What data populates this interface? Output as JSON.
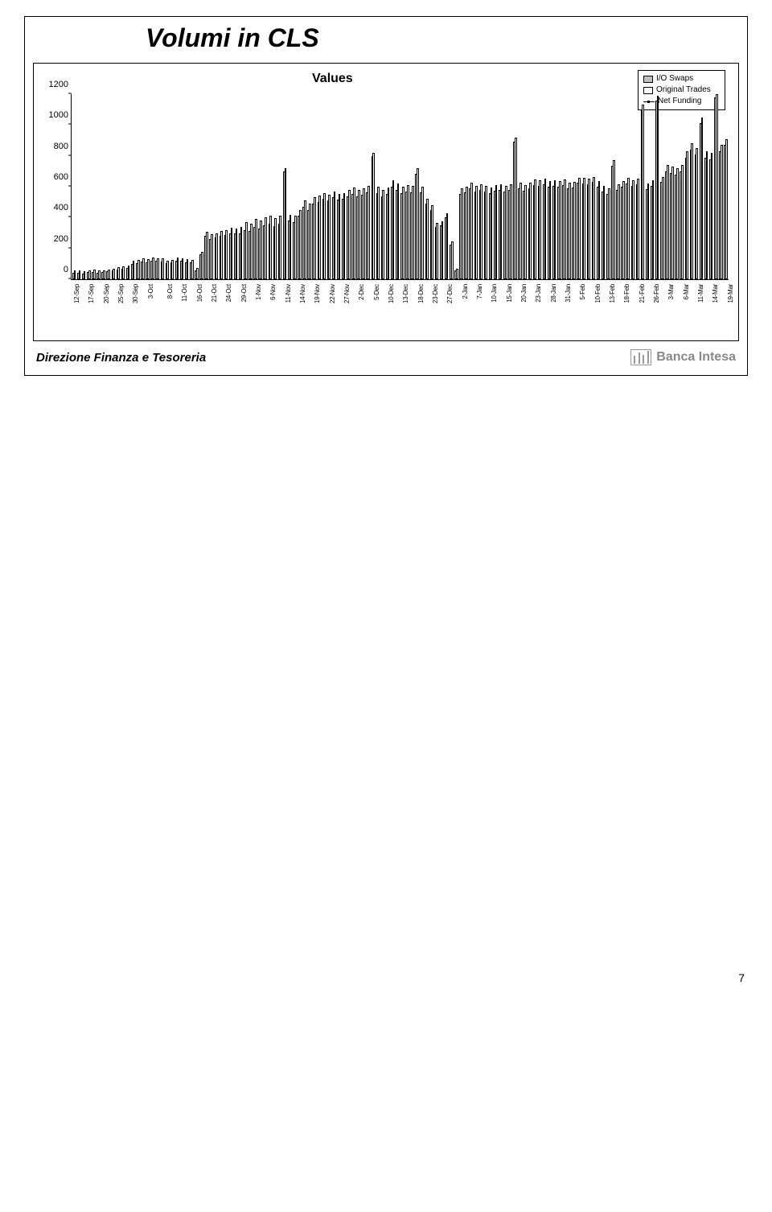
{
  "title": "Volumi in CLS",
  "chart": {
    "values_label": "Values",
    "legend": {
      "io_swaps_label": "I/O Swaps",
      "io_swaps_color": "#c0c0c0",
      "original_trades_label": "Original Trades",
      "original_trades_color": "#ffffff",
      "net_funding_label": "Net Funding"
    },
    "y_axis": {
      "min": 0,
      "max": 1200,
      "step": 200,
      "ticks": [
        0,
        200,
        400,
        600,
        800,
        1000,
        1200
      ]
    },
    "bar_outline": "#000000",
    "series": [
      {
        "date": "12-Sep",
        "io": 40,
        "ot": 55,
        "label": true
      },
      {
        "date": "",
        "io": 42,
        "ot": 58,
        "label": false
      },
      {
        "date": "",
        "io": 38,
        "ot": 52,
        "label": false
      },
      {
        "date": "17-Sep",
        "io": 45,
        "ot": 60,
        "label": true
      },
      {
        "date": "",
        "io": 48,
        "ot": 62,
        "label": false
      },
      {
        "date": "",
        "io": 44,
        "ot": 58,
        "label": false
      },
      {
        "date": "20-Sep",
        "io": 46,
        "ot": 60,
        "label": true
      },
      {
        "date": "",
        "io": 50,
        "ot": 65,
        "label": false
      },
      {
        "date": "",
        "io": 55,
        "ot": 70,
        "label": false
      },
      {
        "date": "25-Sep",
        "io": 65,
        "ot": 80,
        "label": true
      },
      {
        "date": "",
        "io": 68,
        "ot": 85,
        "label": false
      },
      {
        "date": "",
        "io": 72,
        "ot": 90,
        "label": false
      },
      {
        "date": "30-Sep",
        "io": 100,
        "ot": 120,
        "label": true
      },
      {
        "date": "",
        "io": 105,
        "ot": 125,
        "label": false
      },
      {
        "date": "",
        "io": 115,
        "ot": 135,
        "label": false
      },
      {
        "date": "3-Oct",
        "io": 110,
        "ot": 130,
        "label": true
      },
      {
        "date": "",
        "io": 120,
        "ot": 140,
        "label": false
      },
      {
        "date": "",
        "io": 118,
        "ot": 138,
        "label": false
      },
      {
        "date": "",
        "io": 115,
        "ot": 135,
        "label": false
      },
      {
        "date": "8-Oct",
        "io": 105,
        "ot": 122,
        "label": true
      },
      {
        "date": "",
        "io": 108,
        "ot": 126,
        "label": false
      },
      {
        "date": "",
        "io": 120,
        "ot": 140,
        "label": false
      },
      {
        "date": "11-Oct",
        "io": 118,
        "ot": 136,
        "label": true
      },
      {
        "date": "",
        "io": 112,
        "ot": 130,
        "label": false
      },
      {
        "date": "",
        "io": 108,
        "ot": 125,
        "label": false
      },
      {
        "date": "16-Oct",
        "io": 60,
        "ot": 75,
        "label": true
      },
      {
        "date": "",
        "io": 160,
        "ot": 180,
        "label": false
      },
      {
        "date": "",
        "io": 280,
        "ot": 310,
        "label": false
      },
      {
        "date": "21-Oct",
        "io": 260,
        "ot": 290,
        "label": true
      },
      {
        "date": "",
        "io": 270,
        "ot": 300,
        "label": false
      },
      {
        "date": "",
        "io": 280,
        "ot": 315,
        "label": false
      },
      {
        "date": "24-Oct",
        "io": 285,
        "ot": 320,
        "label": true
      },
      {
        "date": "",
        "io": 300,
        "ot": 335,
        "label": false
      },
      {
        "date": "",
        "io": 295,
        "ot": 330,
        "label": false
      },
      {
        "date": "29-Oct",
        "io": 300,
        "ot": 340,
        "label": true
      },
      {
        "date": "",
        "io": 320,
        "ot": 370,
        "label": false
      },
      {
        "date": "",
        "io": 315,
        "ot": 360,
        "label": false
      },
      {
        "date": "1-Nov",
        "io": 340,
        "ot": 390,
        "label": true
      },
      {
        "date": "",
        "io": 330,
        "ot": 380,
        "label": false
      },
      {
        "date": "",
        "io": 350,
        "ot": 400,
        "label": false
      },
      {
        "date": "6-Nov",
        "io": 360,
        "ot": 410,
        "label": true
      },
      {
        "date": "",
        "io": 345,
        "ot": 395,
        "label": false
      },
      {
        "date": "",
        "io": 360,
        "ot": 410,
        "label": false
      },
      {
        "date": "11-Nov",
        "io": 700,
        "ot": 720,
        "label": true
      },
      {
        "date": "",
        "io": 380,
        "ot": 420,
        "label": false
      },
      {
        "date": "",
        "io": 370,
        "ot": 410,
        "label": false
      },
      {
        "date": "14-Nov",
        "io": 410,
        "ot": 450,
        "label": true
      },
      {
        "date": "",
        "io": 470,
        "ot": 510,
        "label": false
      },
      {
        "date": "",
        "io": 450,
        "ot": 490,
        "label": false
      },
      {
        "date": "19-Nov",
        "io": 490,
        "ot": 530,
        "label": true
      },
      {
        "date": "",
        "io": 500,
        "ot": 545,
        "label": false
      },
      {
        "date": "",
        "io": 520,
        "ot": 560,
        "label": false
      },
      {
        "date": "22-Nov",
        "io": 510,
        "ot": 550,
        "label": true
      },
      {
        "date": "",
        "io": 530,
        "ot": 570,
        "label": false
      },
      {
        "date": "",
        "io": 515,
        "ot": 555,
        "label": false
      },
      {
        "date": "27-Nov",
        "io": 520,
        "ot": 560,
        "label": true
      },
      {
        "date": "",
        "io": 540,
        "ot": 580,
        "label": false
      },
      {
        "date": "",
        "io": 555,
        "ot": 595,
        "label": false
      },
      {
        "date": "2-Dec",
        "io": 540,
        "ot": 580,
        "label": true
      },
      {
        "date": "",
        "io": 550,
        "ot": 590,
        "label": false
      },
      {
        "date": "",
        "io": 565,
        "ot": 605,
        "label": false
      },
      {
        "date": "5-Dec",
        "io": 800,
        "ot": 820,
        "label": true
      },
      {
        "date": "",
        "io": 560,
        "ot": 600,
        "label": false
      },
      {
        "date": "",
        "io": 540,
        "ot": 580,
        "label": false
      },
      {
        "date": "10-Dec",
        "io": 555,
        "ot": 595,
        "label": true
      },
      {
        "date": "",
        "io": 600,
        "ot": 640,
        "label": false
      },
      {
        "date": "",
        "io": 580,
        "ot": 620,
        "label": false
      },
      {
        "date": "13-Dec",
        "io": 560,
        "ot": 600,
        "label": true
      },
      {
        "date": "",
        "io": 570,
        "ot": 610,
        "label": false
      },
      {
        "date": "",
        "io": 565,
        "ot": 605,
        "label": false
      },
      {
        "date": "18-Dec",
        "io": 685,
        "ot": 720,
        "label": true
      },
      {
        "date": "",
        "io": 565,
        "ot": 600,
        "label": false
      },
      {
        "date": "",
        "io": 490,
        "ot": 520,
        "label": false
      },
      {
        "date": "23-Dec",
        "io": 450,
        "ot": 480,
        "label": true
      },
      {
        "date": "",
        "io": 340,
        "ot": 365,
        "label": false
      },
      {
        "date": "",
        "io": 350,
        "ot": 375,
        "label": false
      },
      {
        "date": "27-Dec",
        "io": 400,
        "ot": 430,
        "label": true
      },
      {
        "date": "",
        "io": 225,
        "ot": 245,
        "label": false
      },
      {
        "date": "",
        "io": 55,
        "ot": 68,
        "label": false
      },
      {
        "date": "2-Jan",
        "io": 555,
        "ot": 590,
        "label": true
      },
      {
        "date": "",
        "io": 565,
        "ot": 600,
        "label": false
      },
      {
        "date": "",
        "io": 590,
        "ot": 625,
        "label": false
      },
      {
        "date": "7-Jan",
        "io": 570,
        "ot": 605,
        "label": true
      },
      {
        "date": "",
        "io": 580,
        "ot": 615,
        "label": false
      },
      {
        "date": "",
        "io": 570,
        "ot": 605,
        "label": false
      },
      {
        "date": "10-Jan",
        "io": 560,
        "ot": 595,
        "label": true
      },
      {
        "date": "",
        "io": 575,
        "ot": 610,
        "label": false
      },
      {
        "date": "",
        "io": 580,
        "ot": 615,
        "label": false
      },
      {
        "date": "15-Jan",
        "io": 570,
        "ot": 605,
        "label": true
      },
      {
        "date": "",
        "io": 580,
        "ot": 615,
        "label": false
      },
      {
        "date": "",
        "io": 890,
        "ot": 920,
        "label": false
      },
      {
        "date": "20-Jan",
        "io": 590,
        "ot": 625,
        "label": true
      },
      {
        "date": "",
        "io": 575,
        "ot": 610,
        "label": false
      },
      {
        "date": "",
        "io": 590,
        "ot": 625,
        "label": false
      },
      {
        "date": "23-Jan",
        "io": 610,
        "ot": 645,
        "label": true
      },
      {
        "date": "",
        "io": 605,
        "ot": 640,
        "label": false
      },
      {
        "date": "",
        "io": 615,
        "ot": 650,
        "label": false
      },
      {
        "date": "28-Jan",
        "io": 600,
        "ot": 635,
        "label": true
      },
      {
        "date": "",
        "io": 605,
        "ot": 640,
        "label": false
      },
      {
        "date": "",
        "io": 600,
        "ot": 635,
        "label": false
      },
      {
        "date": "31-Jan",
        "io": 610,
        "ot": 645,
        "label": true
      },
      {
        "date": "",
        "io": 590,
        "ot": 625,
        "label": false
      },
      {
        "date": "",
        "io": 595,
        "ot": 630,
        "label": false
      },
      {
        "date": "5-Feb",
        "io": 625,
        "ot": 660,
        "label": true
      },
      {
        "date": "",
        "io": 620,
        "ot": 655,
        "label": false
      },
      {
        "date": "",
        "io": 615,
        "ot": 650,
        "label": false
      },
      {
        "date": "10-Feb",
        "io": 630,
        "ot": 665,
        "label": true
      },
      {
        "date": "",
        "io": 600,
        "ot": 635,
        "label": false
      },
      {
        "date": "",
        "io": 570,
        "ot": 605,
        "label": false
      },
      {
        "date": "13-Feb",
        "io": 555,
        "ot": 590,
        "label": true
      },
      {
        "date": "",
        "io": 735,
        "ot": 770,
        "label": false
      },
      {
        "date": "",
        "io": 580,
        "ot": 615,
        "label": false
      },
      {
        "date": "18-Feb",
        "io": 600,
        "ot": 635,
        "label": true
      },
      {
        "date": "",
        "io": 620,
        "ot": 655,
        "label": false
      },
      {
        "date": "",
        "io": 605,
        "ot": 640,
        "label": false
      },
      {
        "date": "21-Feb",
        "io": 615,
        "ot": 650,
        "label": true
      },
      {
        "date": "",
        "io": 1100,
        "ot": 1130,
        "label": false
      },
      {
        "date": "",
        "io": 585,
        "ot": 620,
        "label": false
      },
      {
        "date": "26-Feb",
        "io": 605,
        "ot": 640,
        "label": true
      },
      {
        "date": "",
        "io": 1160,
        "ot": 1190,
        "label": false
      },
      {
        "date": "",
        "io": 630,
        "ot": 665,
        "label": false
      },
      {
        "date": "3-Mar",
        "io": 700,
        "ot": 740,
        "label": true
      },
      {
        "date": "",
        "io": 690,
        "ot": 730,
        "label": false
      },
      {
        "date": "",
        "io": 680,
        "ot": 720,
        "label": false
      },
      {
        "date": "6-Mar",
        "io": 700,
        "ot": 740,
        "label": true
      },
      {
        "date": "",
        "io": 790,
        "ot": 830,
        "label": false
      },
      {
        "date": "",
        "io": 840,
        "ot": 880,
        "label": false
      },
      {
        "date": "11-Mar",
        "io": 810,
        "ot": 850,
        "label": true
      },
      {
        "date": "",
        "io": 1010,
        "ot": 1050,
        "label": false
      },
      {
        "date": "",
        "io": 790,
        "ot": 830,
        "label": false
      },
      {
        "date": "14-Mar",
        "io": 780,
        "ot": 820,
        "label": true
      },
      {
        "date": "",
        "io": 1180,
        "ot": 1200,
        "label": false
      },
      {
        "date": "",
        "io": 830,
        "ot": 870,
        "label": false
      },
      {
        "date": "19-Mar",
        "io": 870,
        "ot": 910,
        "label": true
      }
    ]
  },
  "footer": {
    "text": "Direzione Finanza e Tesoreria",
    "logo_text": "Banca Intesa"
  },
  "page_number": "7"
}
